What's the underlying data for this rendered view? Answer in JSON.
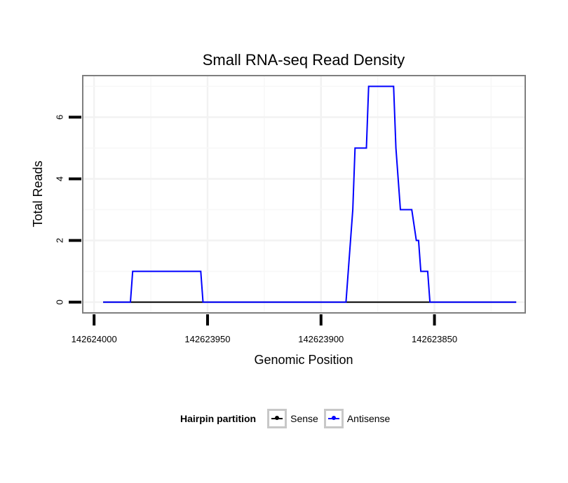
{
  "chart_data": {
    "type": "line",
    "title": "Small RNA-seq Read Density",
    "xlabel": "Genomic Position",
    "ylabel": "Total Reads",
    "x_reversed": true,
    "xlim": [
      142624005,
      142623810
    ],
    "ylim": [
      -0.35,
      7.35
    ],
    "x_ticks": [
      142624000,
      142623950,
      142623900,
      142623850
    ],
    "x_tick_labels": [
      "142624000",
      "142623950",
      "142623900",
      "142623850"
    ],
    "y_ticks": [
      0,
      2,
      4,
      6
    ],
    "y_tick_labels": [
      "0",
      "2",
      "4",
      "6"
    ],
    "legend": {
      "title": "Hairpin partition",
      "placement": "bottom",
      "entries": [
        {
          "label": "Sense",
          "color": "#000000"
        },
        {
          "label": "Antisense",
          "color": "#0000ff"
        }
      ]
    },
    "series": [
      {
        "name": "Sense",
        "color": "#000000",
        "points": [
          [
            142623996,
            0
          ],
          [
            142623814,
            0
          ]
        ]
      },
      {
        "name": "Antisense",
        "color": "#0000ff",
        "points": [
          [
            142623996,
            0
          ],
          [
            142623984,
            0
          ],
          [
            142623983,
            1
          ],
          [
            142623953,
            1
          ],
          [
            142623952,
            0
          ],
          [
            142623889,
            0
          ],
          [
            142623886,
            3
          ],
          [
            142623885,
            5
          ],
          [
            142623880,
            5
          ],
          [
            142623879,
            7
          ],
          [
            142623868,
            7
          ],
          [
            142623867,
            5
          ],
          [
            142623865,
            3
          ],
          [
            142623860,
            3
          ],
          [
            142623858,
            2
          ],
          [
            142623857,
            2
          ],
          [
            142623856,
            1
          ],
          [
            142623853,
            1
          ],
          [
            142623852,
            0
          ],
          [
            142623814,
            0
          ]
        ]
      }
    ]
  }
}
